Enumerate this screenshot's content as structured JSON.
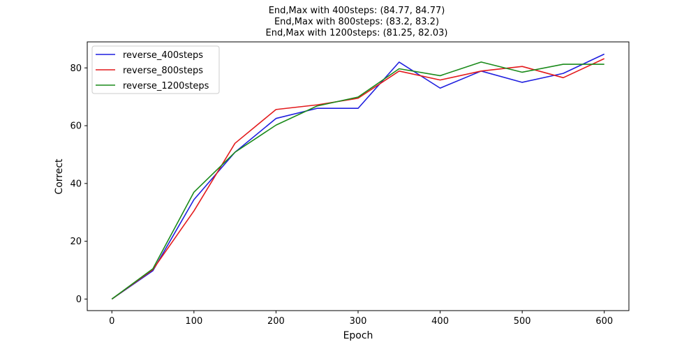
{
  "chart_data": {
    "type": "line",
    "title_lines": [
      "End,Max with 400steps: (84.77, 84.77)",
      "End,Max with 800steps: (83.2, 83.2)",
      "End,Max with 1200steps: (81.25, 82.03)"
    ],
    "xlabel": "Epoch",
    "ylabel": "Correct",
    "xlim": [
      -30,
      630
    ],
    "ylim": [
      -4,
      89
    ],
    "xticks": [
      0,
      100,
      200,
      300,
      400,
      500,
      600
    ],
    "yticks": [
      0,
      20,
      40,
      60,
      80
    ],
    "grid": false,
    "legend_position": "top-left",
    "x": [
      0,
      50,
      100,
      150,
      200,
      250,
      300,
      350,
      400,
      450,
      500,
      550,
      600
    ],
    "series": [
      {
        "name": "reverse_400steps",
        "color": "#1f1fdf",
        "values": [
          0,
          9.8,
          34.4,
          50.8,
          62.5,
          66.0,
          66.0,
          82.0,
          73.0,
          78.9,
          75.0,
          78.1,
          84.77
        ]
      },
      {
        "name": "reverse_800steps",
        "color": "#e31a1c",
        "values": [
          0,
          10.2,
          30.5,
          53.9,
          65.6,
          67.2,
          69.5,
          78.9,
          75.8,
          78.9,
          80.5,
          76.6,
          83.2
        ]
      },
      {
        "name": "reverse_1200steps",
        "color": "#1a8a1a",
        "values": [
          0,
          10.5,
          37.0,
          50.8,
          60.2,
          66.8,
          69.9,
          79.7,
          77.3,
          82.03,
          78.5,
          81.25,
          81.25
        ]
      }
    ]
  }
}
